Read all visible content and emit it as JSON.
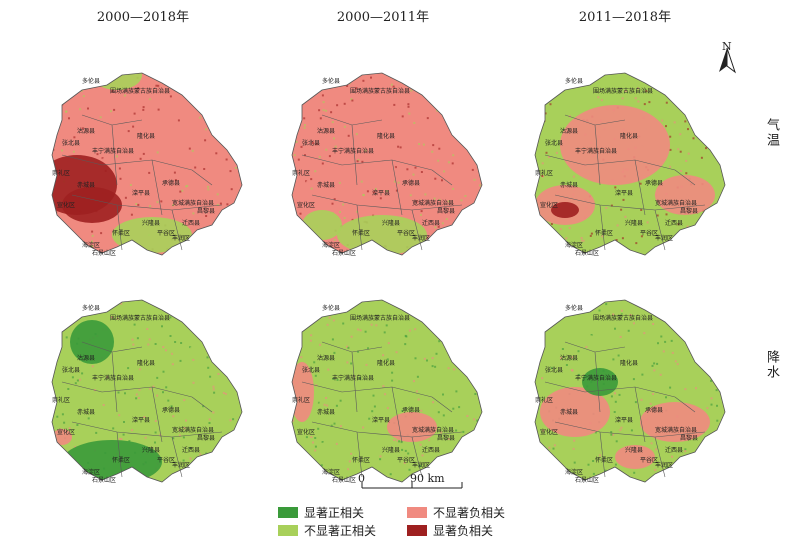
{
  "columns": [
    "2000—2018年",
    "2000—2011年",
    "2011—2018年"
  ],
  "rows": [
    "气温",
    "降水"
  ],
  "north_label": "N",
  "scale": {
    "start": "0",
    "end": "90 km"
  },
  "legend": [
    {
      "label": "显著正相关",
      "color": "#3a9a3a"
    },
    {
      "label": "不显著正相关",
      "color": "#a8d05a"
    },
    {
      "label": "不显著负相关",
      "color": "#f08a80"
    },
    {
      "label": "显著负相关",
      "color": "#9e2020"
    }
  ],
  "map_labels": [
    "多伦县",
    "围场满族蒙古族自治县",
    "沽源县",
    "隆化县",
    "丰宁满族自治县",
    "张北县",
    "崇礼区",
    "赤城县",
    "滦平县",
    "承德县",
    "宽城满族自治县",
    "宣化区",
    "兴隆县",
    "怀柔区",
    "平谷区",
    "昌黎县",
    "海淀区",
    "石景山区",
    "迁西县",
    "丰润区"
  ],
  "colors": {
    "green_dark": "#3a9a3a",
    "green_light": "#a8d05a",
    "pink": "#f08a80",
    "red": "#9e2020",
    "border": "#5a5a5a"
  }
}
